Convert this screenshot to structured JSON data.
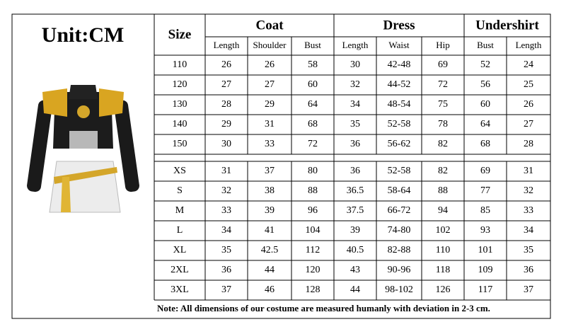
{
  "header": {
    "unit": "Unit:CM"
  },
  "table": {
    "size_header": "Size",
    "groups": [
      {
        "name": "Coat",
        "columns": [
          "Length",
          "Shoulder",
          "Bust"
        ]
      },
      {
        "name": "Dress",
        "columns": [
          "Length",
          "Waist",
          "Hip"
        ]
      },
      {
        "name": "Undershirt",
        "columns": [
          "Bust",
          "Length"
        ]
      }
    ],
    "sections": [
      [
        [
          "110",
          "26",
          "26",
          "58",
          "30",
          "42-48",
          "69",
          "52",
          "24"
        ],
        [
          "120",
          "27",
          "27",
          "60",
          "32",
          "44-52",
          "72",
          "56",
          "25"
        ],
        [
          "130",
          "28",
          "29",
          "64",
          "34",
          "48-54",
          "75",
          "60",
          "26"
        ],
        [
          "140",
          "29",
          "31",
          "68",
          "35",
          "52-58",
          "78",
          "64",
          "27"
        ],
        [
          "150",
          "30",
          "33",
          "72",
          "36",
          "56-62",
          "82",
          "68",
          "28"
        ]
      ],
      [
        [
          "XS",
          "31",
          "37",
          "80",
          "36",
          "52-58",
          "82",
          "69",
          "31"
        ],
        [
          "S",
          "32",
          "38",
          "88",
          "36.5",
          "58-64",
          "88",
          "77",
          "32"
        ],
        [
          "M",
          "33",
          "39",
          "96",
          "37.5",
          "66-72",
          "94",
          "85",
          "33"
        ],
        [
          "L",
          "34",
          "41",
          "104",
          "39",
          "74-80",
          "102",
          "93",
          "34"
        ],
        [
          "XL",
          "35",
          "42.5",
          "112",
          "40.5",
          "82-88",
          "110",
          "101",
          "35"
        ],
        [
          "2XL",
          "36",
          "44",
          "120",
          "43",
          "90-96",
          "118",
          "109",
          "36"
        ],
        [
          "3XL",
          "37",
          "46",
          "128",
          "44",
          "98-102",
          "126",
          "117",
          "37"
        ]
      ]
    ],
    "note": "Note: All dimensions of our costume are measured humanly with deviation in 2-3 cm."
  }
}
